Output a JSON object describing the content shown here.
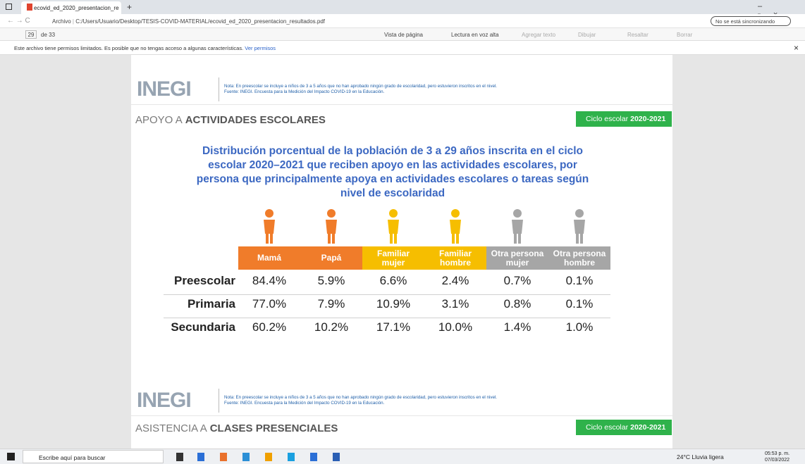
{
  "browser": {
    "tab_title": "ecovid_ed_2020_presentacion_re",
    "address_prefix": "Archivo",
    "address": "C:/Users/Usuario/Desktop/TESIS-COVID-MATERIAL/ecovid_ed_2020_presentacion_resultados.pdf",
    "sync": "No se está sincronizando"
  },
  "toolbar": {
    "page": "29",
    "page_count": "de 33",
    "view": "Vista de página",
    "read_aloud": "Lectura en voz alta",
    "add_text": "Agregar texto",
    "draw": "Dibujar",
    "highlight": "Resaltar",
    "erase": "Borrar"
  },
  "infobar": {
    "message": "Este archivo tiene permisos limitados. Es posible que no tengas acceso a algunas características.",
    "link": "Ver permisos"
  },
  "logo": "INEGI",
  "notes": [
    {
      "note": "Nota: En preescolar se incluye a niños de 3 a 5 años que no han aprobado ningún grado de escolaridad, pero estuvieron inscritos en el nivel.",
      "source": "Fuente: INEGI. Encuesta para la Medición del Impacto COVID-19 en la Educación."
    },
    {
      "note": "Nota: En preescolar se incluye a niños de 3 a 5 años que no han aprobado ningún grado de escolaridad, pero estuvieron inscritos en el nivel.",
      "source": "Fuente: INEGI. Encuesta para la Medición del Impacto COVID-19 en la Educación."
    }
  ],
  "sections": [
    {
      "title_light": "APOYO A",
      "title_bold": "ACTIVIDADES ESCOLARES",
      "badge_light": "Ciclo escolar",
      "badge_bold": "2020-2021"
    },
    {
      "title_light": "ASISTENCIA A",
      "title_bold": "CLASES PRESENCIALES",
      "badge_light": "Ciclo escolar",
      "badge_bold": "2020-2021"
    }
  ],
  "chart_title": "Distribución porcentual de la población de 3 a 29 años inscrita en el ciclo escolar 2020–2021 que reciben apoyo en las actividades escolares, por persona que principalmente apoya en actividades escolares o tareas según nivel de escolaridad",
  "table": {
    "columns": [
      "Mamá",
      "Papá",
      "Familiar mujer",
      "Familiar hombre",
      "Otra persona mujer",
      "Otra persona hombre"
    ],
    "rows": [
      [
        "Preescolar",
        "84.4%",
        "5.9%",
        "6.6%",
        "2.4%",
        "0.7%",
        "0.1%"
      ],
      [
        "Primaria",
        "77.0%",
        "7.9%",
        "10.9%",
        "3.1%",
        "0.8%",
        "0.1%"
      ],
      [
        "Secundaria",
        "60.2%",
        "10.2%",
        "17.1%",
        "10.0%",
        "1.4%",
        "1.0%"
      ]
    ]
  },
  "taskbar": {
    "search": "Escribe aquí para buscar",
    "weather": "24°C Lluvia ligera",
    "time": "05:53 p. m.",
    "date": "07/03/2022"
  }
}
